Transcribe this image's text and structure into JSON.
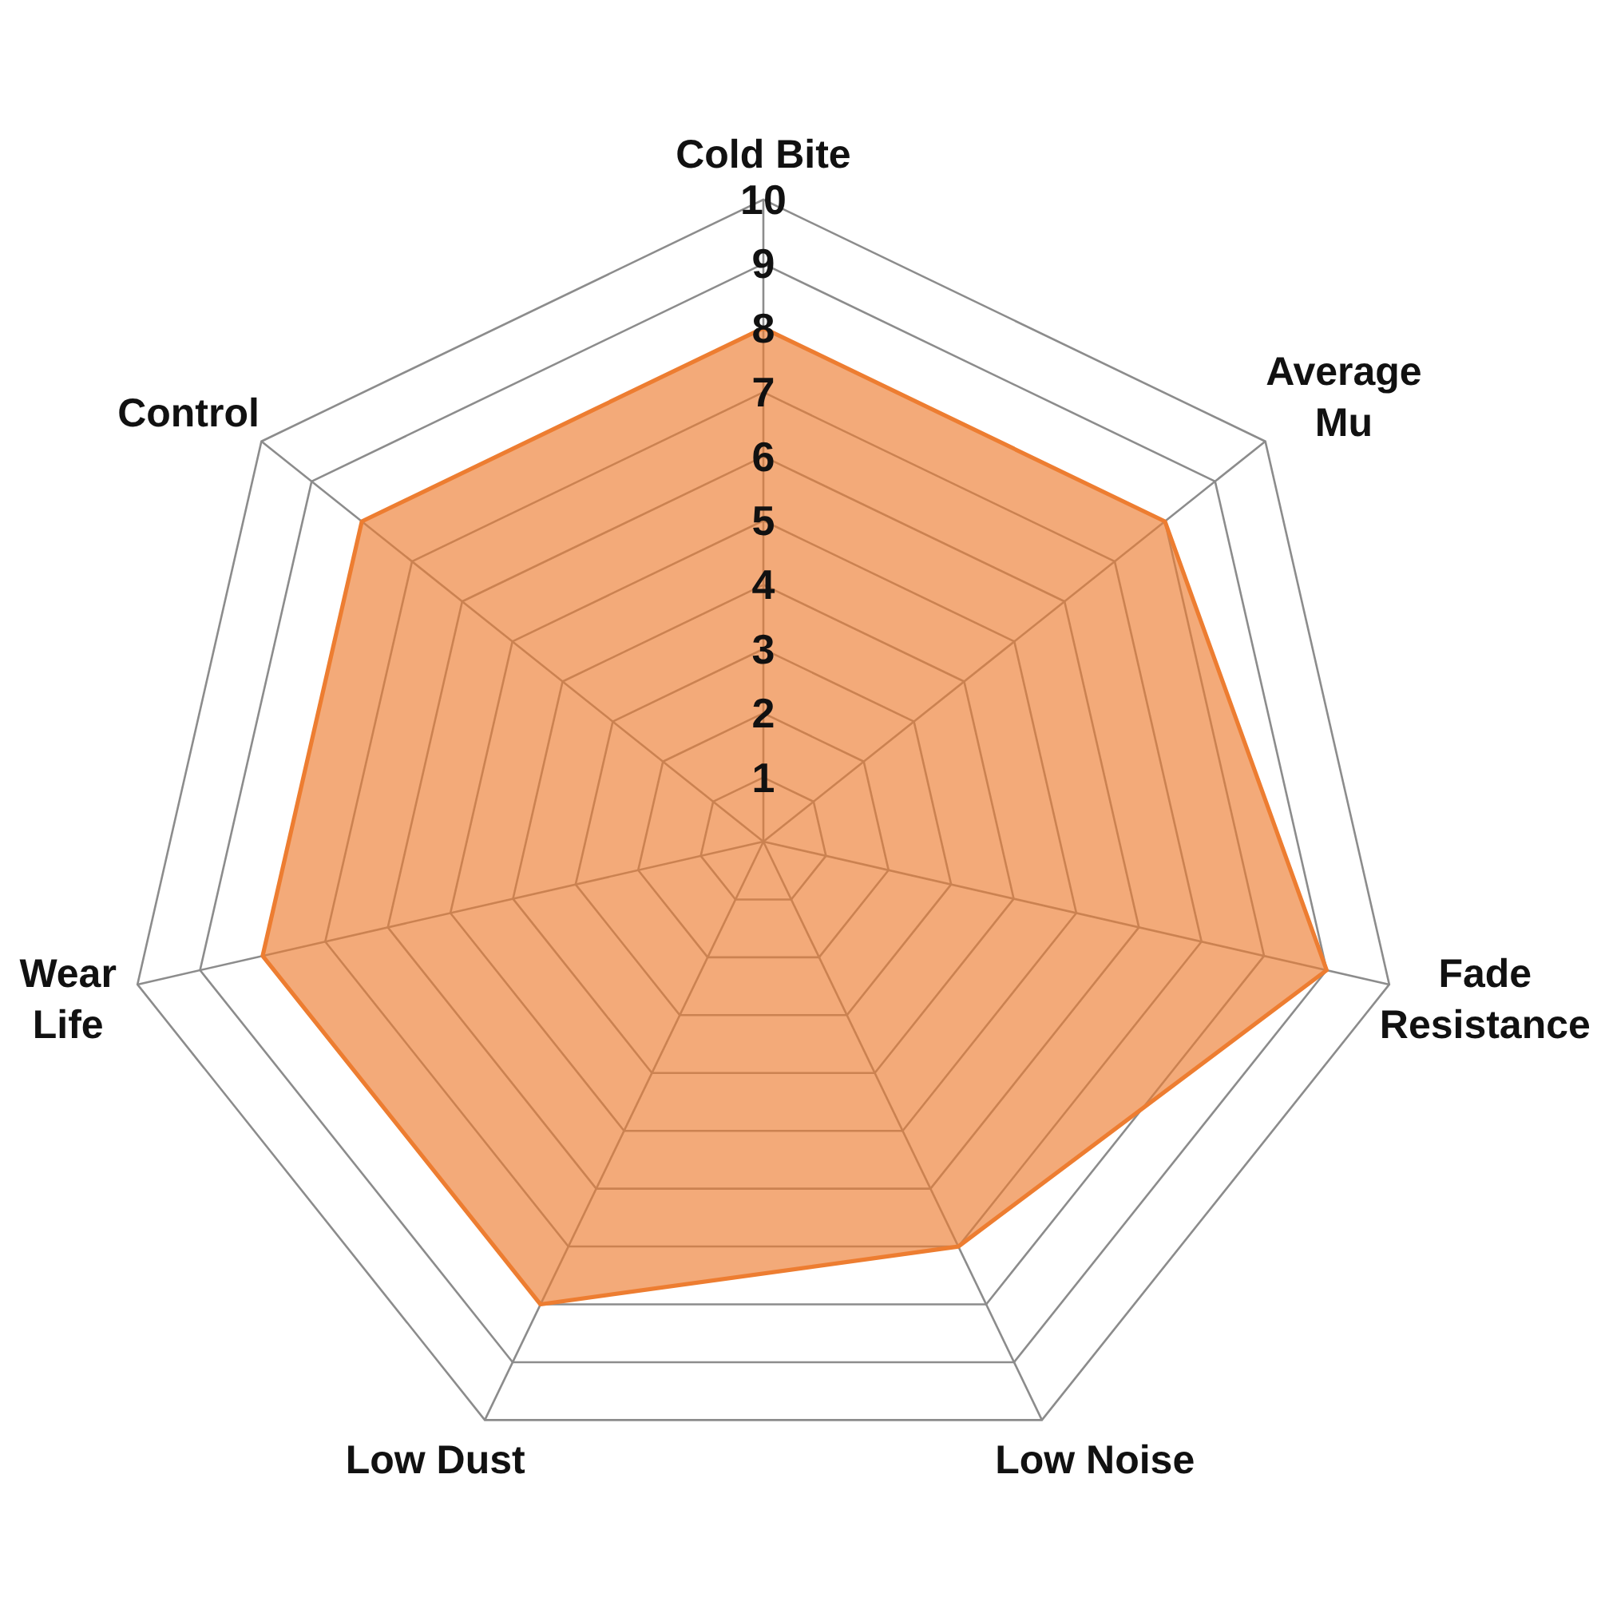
{
  "chart_data": {
    "type": "radar",
    "categories": [
      "Cold Bite",
      "Average Mu",
      "Fade Resistance",
      "Low Noise",
      "Low Dust",
      "Wear Life",
      "Control"
    ],
    "series": [
      {
        "color": "#ed7d31",
        "values": [
          8,
          8,
          9,
          7,
          8,
          8,
          8
        ]
      }
    ],
    "ylim": [
      0,
      10
    ],
    "yticks": [
      1,
      2,
      3,
      4,
      5,
      6,
      7,
      8,
      9,
      10
    ],
    "grid": true
  }
}
